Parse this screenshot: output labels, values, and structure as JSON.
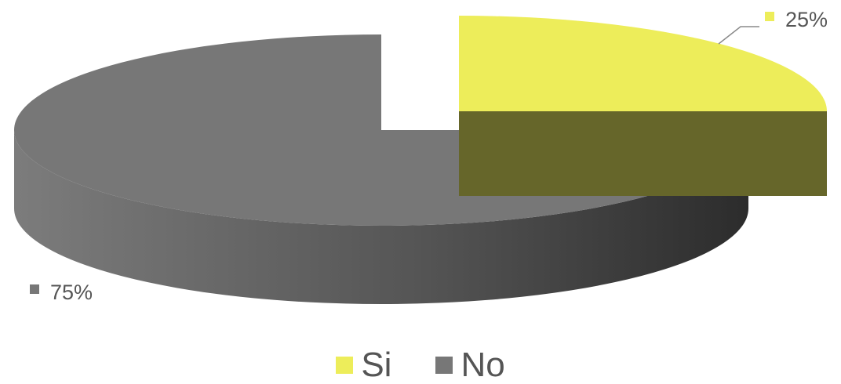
{
  "chart_data": {
    "type": "pie",
    "style": "3d-exploded",
    "categories": [
      "Si",
      "No"
    ],
    "values": [
      25,
      75
    ],
    "labels": [
      "25%",
      "75%"
    ],
    "colors": [
      "#eded5a",
      "#777777"
    ],
    "title": "",
    "legend_position": "bottom"
  }
}
